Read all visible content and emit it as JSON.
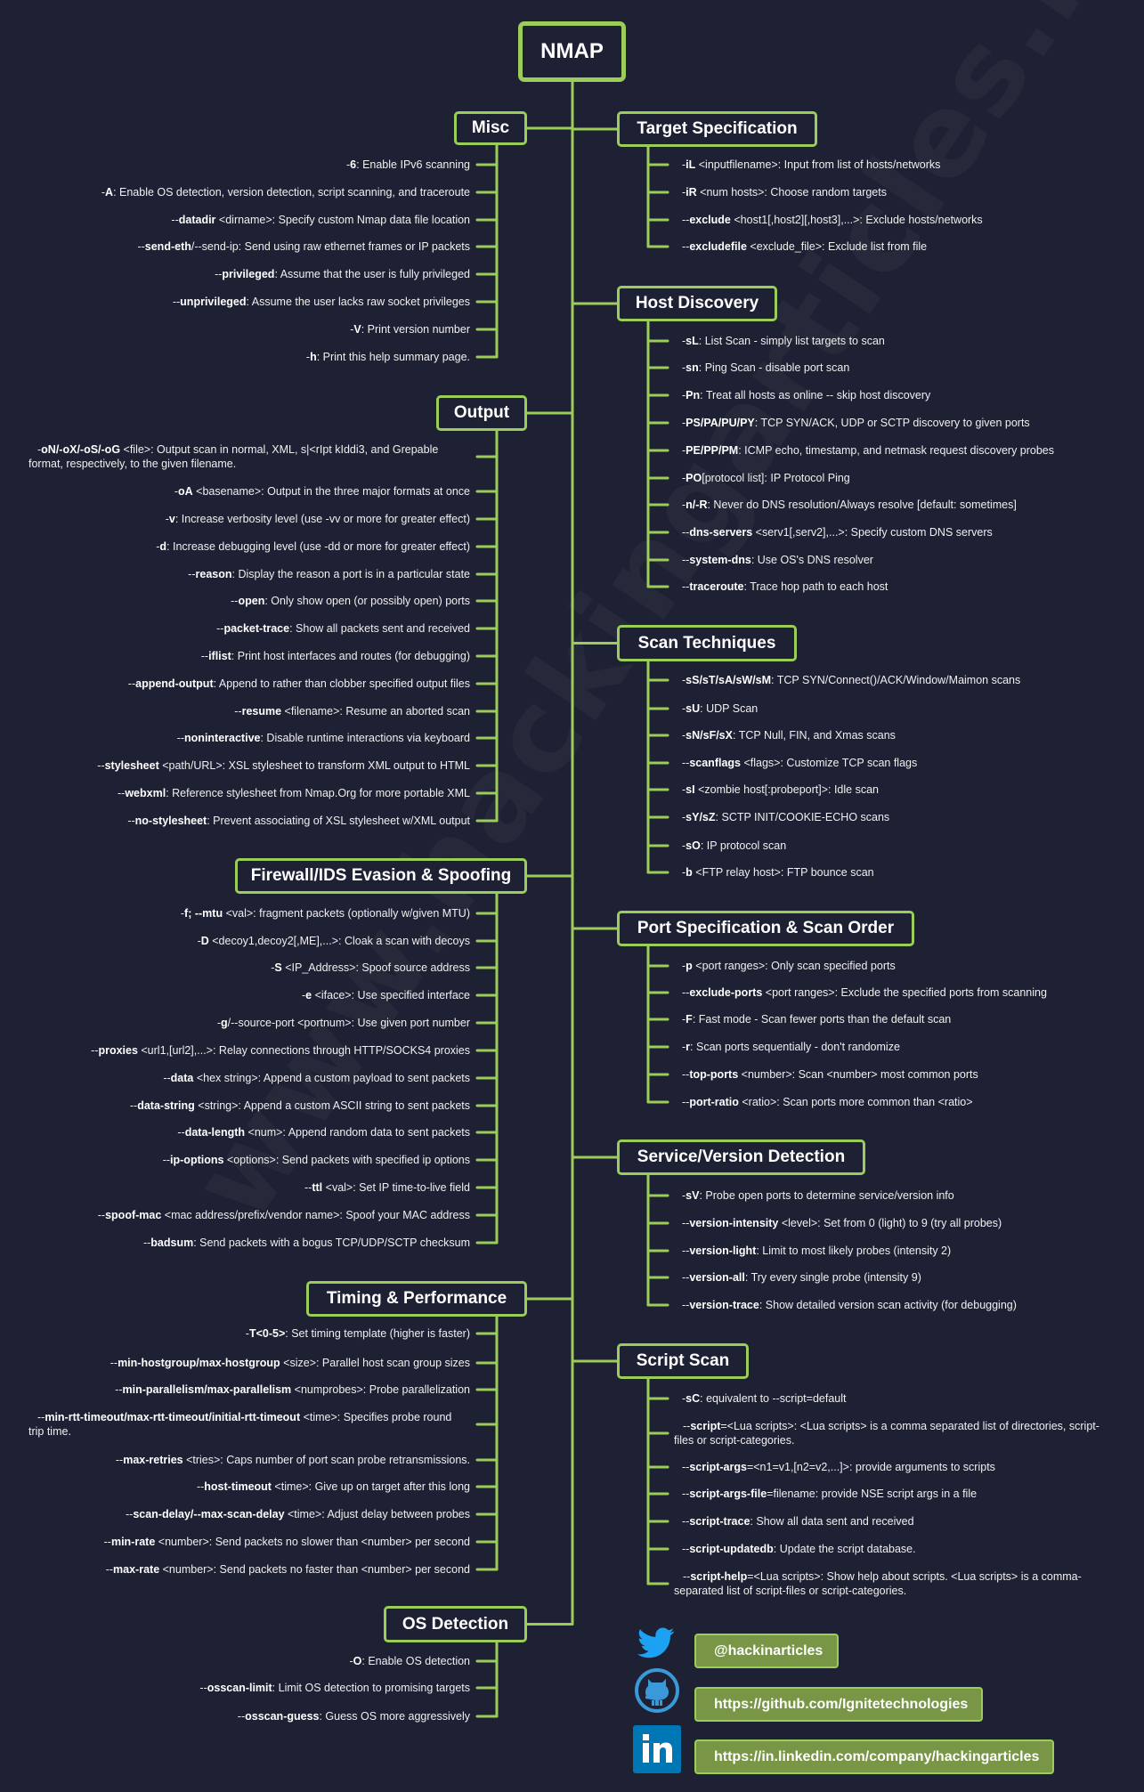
{
  "watermark": "www.hackingarticles.in",
  "root": "NMAP",
  "colors": {
    "background": "#1e2033",
    "accent": "#9ccc5a",
    "social_box": "#789645",
    "twitter": "#1da1f2",
    "github": "#3a9ad9",
    "linkedin": "#0077b5"
  },
  "sections": [
    {
      "title": "Misc",
      "items": [
        {
          "p": "-",
          "b": "6",
          "t": ": Enable IPv6 scanning"
        },
        {
          "p": "-",
          "b": "A",
          "t": ": Enable OS detection, version detection, script scanning, and traceroute"
        },
        {
          "p": "--",
          "b": "datadir",
          "t": " <dirname>: Specify custom Nmap data file location"
        },
        {
          "p": "--",
          "b": "send-eth",
          "t": "/--send-ip: Send using raw ethernet frames or IP packets"
        },
        {
          "p": "--",
          "b": "privileged",
          "t": ": Assume that the user is fully privileged"
        },
        {
          "p": "--",
          "b": "unprivileged",
          "t": ": Assume the user lacks raw socket privileges"
        },
        {
          "p": "-",
          "b": "V",
          "t": ": Print version number"
        },
        {
          "p": "-",
          "b": "h",
          "t": ": Print this help summary page."
        }
      ]
    },
    {
      "title": "Target Specification",
      "items": [
        {
          "p": "-",
          "b": "iL",
          "t": " <inputfilename>: Input from list of hosts/networks"
        },
        {
          "p": "-",
          "b": "iR",
          "t": " <num hosts>: Choose random targets"
        },
        {
          "p": "--",
          "b": "exclude",
          "t": " <host1[,host2][,host3],...>: Exclude hosts/networks"
        },
        {
          "p": "--",
          "b": "excludefile",
          "t": " <exclude_file>: Exclude list from file"
        }
      ]
    },
    {
      "title": "Host Discovery",
      "items": [
        {
          "p": "-",
          "b": "sL",
          "t": ": List Scan - simply list targets to scan"
        },
        {
          "p": "-",
          "b": "sn",
          "t": ": Ping Scan - disable port scan"
        },
        {
          "p": "-",
          "b": "Pn",
          "t": ": Treat all hosts as online -- skip host discovery"
        },
        {
          "p": "-",
          "b": "PS/PA/PU/PY",
          "t": ": TCP SYN/ACK, UDP or SCTP discovery to given ports"
        },
        {
          "p": "-",
          "b": "PE/PP/PM",
          "t": ": ICMP echo, timestamp, and netmask request discovery probes"
        },
        {
          "p": "-",
          "b": "PO",
          "t": "[protocol list]: IP Protocol Ping"
        },
        {
          "p": "-",
          "b": "n/-R",
          "t": ": Never do DNS resolution/Always resolve [default: sometimes]"
        },
        {
          "p": "--",
          "b": "dns-servers",
          "t": " <serv1[,serv2],...>: Specify custom DNS servers"
        },
        {
          "p": "--",
          "b": "system-dns",
          "t": ": Use OS's DNS resolver"
        },
        {
          "p": "--",
          "b": "traceroute",
          "t": ": Trace hop path to each host"
        }
      ]
    },
    {
      "title": "Output",
      "items": [
        {
          "p": "-",
          "b": "oN/-oX/-oS/-oG",
          "t": " <file>: Output scan in normal, XML, s|<rIpt kIddi3, and Grepable format, respectively, to the given filename."
        },
        {
          "p": "-",
          "b": "oA",
          "t": " <basename>: Output in the three major formats at once"
        },
        {
          "p": "-",
          "b": "v",
          "t": ": Increase verbosity level (use -vv or more for greater effect)"
        },
        {
          "p": "-",
          "b": "d",
          "t": ": Increase debugging level (use -dd or more for greater effect)"
        },
        {
          "p": "--",
          "b": "reason",
          "t": ": Display the reason a port is in a particular state"
        },
        {
          "p": "--",
          "b": "open",
          "t": ": Only show open (or possibly open) ports"
        },
        {
          "p": "--",
          "b": "packet-trace",
          "t": ": Show all packets sent and received"
        },
        {
          "p": "--",
          "b": "iflist",
          "t": ": Print host interfaces and routes (for debugging)"
        },
        {
          "p": "--",
          "b": "append-output",
          "t": ": Append to rather than clobber specified output files"
        },
        {
          "p": "--",
          "b": "resume",
          "t": " <filename>: Resume an aborted scan"
        },
        {
          "p": "--",
          "b": "noninteractive",
          "t": ": Disable runtime interactions via keyboard"
        },
        {
          "p": "--",
          "b": "stylesheet",
          "t": " <path/URL>: XSL stylesheet to transform XML output to HTML"
        },
        {
          "p": "--",
          "b": "webxml",
          "t": ": Reference stylesheet from Nmap.Org for more portable XML"
        },
        {
          "p": "--",
          "b": "no-stylesheet",
          "t": ": Prevent associating of XSL stylesheet w/XML output"
        }
      ]
    },
    {
      "title": "Scan Techniques",
      "items": [
        {
          "p": "-",
          "b": "sS/sT/sA/sW/sM",
          "t": ": TCP SYN/Connect()/ACK/Window/Maimon scans"
        },
        {
          "p": "-",
          "b": "sU",
          "t": ": UDP Scan"
        },
        {
          "p": "-",
          "b": "sN/sF/sX",
          "t": ": TCP Null, FIN, and Xmas scans"
        },
        {
          "p": "--",
          "b": "scanflags",
          "t": " <flags>: Customize TCP scan flags"
        },
        {
          "p": "-",
          "b": "sI",
          "t": " <zombie host[:probeport]>: Idle scan"
        },
        {
          "p": "-",
          "b": "sY/sZ",
          "t": ": SCTP INIT/COOKIE-ECHO scans"
        },
        {
          "p": "-",
          "b": "sO",
          "t": ": IP protocol scan"
        },
        {
          "p": "-",
          "b": "b",
          "t": " <FTP relay host>: FTP bounce scan"
        }
      ]
    },
    {
      "title": "Firewall/IDS Evasion & Spoofing",
      "items": [
        {
          "p": "-",
          "b": "f; --mtu",
          "t": " <val>: fragment packets (optionally w/given MTU)"
        },
        {
          "p": "-",
          "b": "D",
          "t": " <decoy1,decoy2[,ME],...>: Cloak a scan with decoys"
        },
        {
          "p": "-",
          "b": "S",
          "t": " <IP_Address>: Spoof source address"
        },
        {
          "p": "-",
          "b": "e",
          "t": " <iface>: Use specified interface"
        },
        {
          "p": "-",
          "b": "g",
          "t": "/--source-port <portnum>: Use given port number"
        },
        {
          "p": "--",
          "b": "proxies",
          "t": " <url1,[url2],...>: Relay connections through HTTP/SOCKS4 proxies"
        },
        {
          "p": "--",
          "b": "data",
          "t": " <hex string>: Append a custom payload to sent packets"
        },
        {
          "p": "--",
          "b": "data-string",
          "t": " <string>: Append a custom ASCII string to sent packets"
        },
        {
          "p": "--",
          "b": "data-length",
          "t": " <num>: Append random data to sent packets"
        },
        {
          "p": "--",
          "b": "ip-options",
          "t": " <options>: Send packets with specified ip options"
        },
        {
          "p": "--",
          "b": "ttl",
          "t": " <val>: Set IP time-to-live field"
        },
        {
          "p": "--",
          "b": "spoof-mac",
          "t": " <mac address/prefix/vendor name>: Spoof your MAC address"
        },
        {
          "p": "--",
          "b": "badsum",
          "t": ": Send packets with a bogus TCP/UDP/SCTP checksum"
        }
      ]
    },
    {
      "title": "Port Specification & Scan Order",
      "items": [
        {
          "p": "-",
          "b": "p",
          "t": " <port ranges>: Only scan specified ports"
        },
        {
          "p": "--",
          "b": "exclude-ports",
          "t": " <port ranges>: Exclude the specified ports from scanning"
        },
        {
          "p": "-",
          "b": "F",
          "t": ": Fast mode - Scan fewer ports than the default scan"
        },
        {
          "p": "-",
          "b": "r",
          "t": ": Scan ports sequentially - don't randomize"
        },
        {
          "p": "--",
          "b": "top-ports",
          "t": " <number>: Scan <number> most common ports"
        },
        {
          "p": "--",
          "b": "port-ratio",
          "t": " <ratio>: Scan ports more common than <ratio>"
        }
      ]
    },
    {
      "title": "Service/Version Detection",
      "items": [
        {
          "p": "-",
          "b": "sV",
          "t": ": Probe open ports to determine service/version info"
        },
        {
          "p": "--",
          "b": "version-intensity",
          "t": " <level>: Set from 0 (light) to 9 (try all probes)"
        },
        {
          "p": "--",
          "b": "version-light",
          "t": ": Limit to most likely probes (intensity 2)"
        },
        {
          "p": "--",
          "b": "version-all",
          "t": ": Try every single probe (intensity 9)"
        },
        {
          "p": "--",
          "b": "version-trace",
          "t": ": Show detailed version scan activity (for debugging)"
        }
      ]
    },
    {
      "title": "Timing & Performance",
      "items": [
        {
          "p": "-",
          "b": "T<0-5>",
          "t": ": Set timing template (higher is faster)"
        },
        {
          "p": "--",
          "b": "min-hostgroup/max-hostgroup",
          "t": " <size>: Parallel host scan group sizes"
        },
        {
          "p": "--",
          "b": "min-parallelism/max-parallelism",
          "t": " <numprobes>: Probe parallelization"
        },
        {
          "p": "--",
          "b": "min-rtt-timeout/max-rtt-timeout/initial-rtt-timeout",
          "t": " <time>: Specifies  probe round trip time."
        },
        {
          "p": "--",
          "b": "max-retries",
          "t": " <tries>: Caps number of port scan probe retransmissions."
        },
        {
          "p": "--",
          "b": "host-timeout",
          "t": " <time>: Give up on target after this long"
        },
        {
          "p": "--",
          "b": "scan-delay/--max-scan-delay",
          "t": " <time>: Adjust delay between probes"
        },
        {
          "p": "--",
          "b": "min-rate",
          "t": " <number>: Send packets no slower than <number> per second"
        },
        {
          "p": "--",
          "b": "max-rate",
          "t": " <number>: Send packets no faster than <number> per second"
        }
      ]
    },
    {
      "title": "Script Scan",
      "items": [
        {
          "p": "-",
          "b": "sC",
          "t": ": equivalent to --script=default"
        },
        {
          "p": "--",
          "b": "script",
          "t": "=<Lua scripts>: <Lua scripts> is a comma separated list of directories, script-files or script-categories."
        },
        {
          "p": "--",
          "b": "script-args",
          "t": "=<n1=v1,[n2=v2,...]>: provide arguments to scripts"
        },
        {
          "p": "--",
          "b": "script-args-file",
          "t": "=filename: provide NSE script args in a file"
        },
        {
          "p": "--",
          "b": "script-trace",
          "t": ": Show all data sent and received"
        },
        {
          "p": "--",
          "b": "script-updatedb",
          "t": ": Update the script database."
        },
        {
          "p": "--",
          "b": "script-help",
          "t": "=<Lua scripts>: Show help about scripts. <Lua scripts> is a comma-separated list of script-files or  script-categories."
        }
      ]
    },
    {
      "title": "OS Detection",
      "items": [
        {
          "p": "-",
          "b": "O",
          "t": ": Enable OS detection"
        },
        {
          "p": "--",
          "b": "osscan-limit",
          "t": ": Limit OS detection to promising targets"
        },
        {
          "p": "--",
          "b": "osscan-guess",
          "t": ": Guess OS more aggressively"
        }
      ]
    }
  ],
  "social": {
    "twitter": {
      "icon": "twitter-icon",
      "label": "@hackinarticles"
    },
    "github": {
      "icon": "github-icon",
      "label": "https://github.com/Ignitetechnologies"
    },
    "linkedin": {
      "icon": "linkedin-icon",
      "label": "https://in.linkedin.com/company/hackingarticles"
    }
  }
}
